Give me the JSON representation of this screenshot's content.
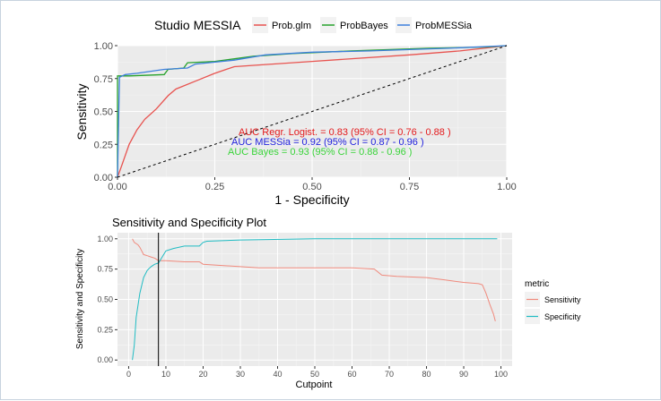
{
  "chart_data": [
    {
      "type": "line",
      "title": "",
      "xlabel": "1 - Specificity",
      "ylabel": "Sensitivity",
      "xlim": [
        0,
        1
      ],
      "ylim": [
        0,
        1
      ],
      "grid": true,
      "legend": {
        "title": "Studio MESSIA",
        "placement": "top",
        "entries": [
          "Prob.glm",
          "ProbBayes",
          "ProbMESSia"
        ]
      },
      "x_ticks": [
        "0.00",
        "0.25",
        "0.50",
        "0.75",
        "1.00"
      ],
      "y_ticks": [
        "0.00",
        "0.25",
        "0.50",
        "0.75",
        "1.00"
      ],
      "series": [
        {
          "name": "Prob.glm",
          "color": "#e8534f",
          "points": [
            [
              0,
              0
            ],
            [
              0.01,
              0.08
            ],
            [
              0.03,
              0.25
            ],
            [
              0.05,
              0.36
            ],
            [
              0.07,
              0.44
            ],
            [
              0.1,
              0.52
            ],
            [
              0.13,
              0.62
            ],
            [
              0.15,
              0.67
            ],
            [
              0.2,
              0.73
            ],
            [
              0.25,
              0.79
            ],
            [
              0.3,
              0.84
            ],
            [
              0.35,
              0.85
            ],
            [
              0.5,
              0.88
            ],
            [
              0.75,
              0.93
            ],
            [
              0.88,
              0.96
            ],
            [
              1,
              1
            ]
          ]
        },
        {
          "name": "ProbBayes",
          "color": "#27a22c",
          "points": [
            [
              0,
              0
            ],
            [
              0,
              0.77
            ],
            [
              0.03,
              0.77
            ],
            [
              0.12,
              0.78
            ],
            [
              0.13,
              0.82
            ],
            [
              0.17,
              0.83
            ],
            [
              0.18,
              0.87
            ],
            [
              0.25,
              0.88
            ],
            [
              0.35,
              0.92
            ],
            [
              0.45,
              0.94
            ],
            [
              0.6,
              0.96
            ],
            [
              0.8,
              0.98
            ],
            [
              0.95,
              0.99
            ],
            [
              1,
              1
            ]
          ]
        },
        {
          "name": "ProbMESSia",
          "color": "#3d7fdc",
          "points": [
            [
              0,
              0
            ],
            [
              0.005,
              0.76
            ],
            [
              0.02,
              0.78
            ],
            [
              0.05,
              0.79
            ],
            [
              0.12,
              0.82
            ],
            [
              0.18,
              0.83
            ],
            [
              0.2,
              0.86
            ],
            [
              0.3,
              0.89
            ],
            [
              0.38,
              0.93
            ],
            [
              0.5,
              0.95
            ],
            [
              0.65,
              0.96
            ],
            [
              0.85,
              0.98
            ],
            [
              1,
              1
            ]
          ]
        },
        {
          "name": "",
          "color": "#000000",
          "dashed": true,
          "points": [
            [
              0,
              0
            ],
            [
              1,
              1
            ]
          ]
        }
      ],
      "annotations": [
        {
          "text": "AUC Regr. Logist. =  0.83  (95% CI =  0.76 - 0.88 )",
          "color": "#e41a1c"
        },
        {
          "text": "AUC MESSia              =  0.92 (95% CI =  0.87 - 0.96 )",
          "color": "#1f1fdd"
        },
        {
          "text": "AUC Bayes                  =  0.93 (95% CI =  0.88 - 0.96 )",
          "color": "#3ad43a"
        }
      ]
    },
    {
      "type": "line",
      "title": "Sensitivity and Specificity Plot",
      "xlabel": "Cutpoint",
      "ylabel": "Sensitivity and Specificity",
      "xlim": [
        -3,
        103
      ],
      "ylim": [
        -0.05,
        1.05
      ],
      "grid": true,
      "legend": {
        "title": "metric",
        "placement": "right",
        "entries": [
          "Sensitivity",
          "Specificity"
        ]
      },
      "x_ticks": [
        "0",
        "10",
        "20",
        "30",
        "40",
        "50",
        "60",
        "70",
        "80",
        "90",
        "100"
      ],
      "y_ticks": [
        "0.00",
        "0.25",
        "0.50",
        "0.75",
        "1.00"
      ],
      "vline": 8,
      "series": [
        {
          "name": "Sensitivity",
          "color": "#f08a7d",
          "points": [
            [
              1,
              1.0
            ],
            [
              1.5,
              0.97
            ],
            [
              2.5,
              0.95
            ],
            [
              3,
              0.93
            ],
            [
              3.5,
              0.9
            ],
            [
              4,
              0.87
            ],
            [
              5,
              0.86
            ],
            [
              6,
              0.85
            ],
            [
              7,
              0.84
            ],
            [
              8,
              0.82
            ],
            [
              10,
              0.82
            ],
            [
              15,
              0.81
            ],
            [
              19,
              0.81
            ],
            [
              20,
              0.79
            ],
            [
              25,
              0.78
            ],
            [
              30,
              0.77
            ],
            [
              35,
              0.76
            ],
            [
              40,
              0.76
            ],
            [
              60,
              0.76
            ],
            [
              66,
              0.75
            ],
            [
              68,
              0.7
            ],
            [
              72,
              0.69
            ],
            [
              80,
              0.68
            ],
            [
              85,
              0.66
            ],
            [
              90,
              0.64
            ],
            [
              94,
              0.63
            ],
            [
              95,
              0.62
            ],
            [
              96,
              0.55
            ],
            [
              97,
              0.46
            ],
            [
              98,
              0.38
            ],
            [
              98.5,
              0.32
            ]
          ]
        },
        {
          "name": "Specificity",
          "color": "#21bcc3",
          "points": [
            [
              1,
              0.0
            ],
            [
              1.5,
              0.12
            ],
            [
              2,
              0.35
            ],
            [
              3,
              0.55
            ],
            [
              4,
              0.68
            ],
            [
              5,
              0.74
            ],
            [
              6,
              0.77
            ],
            [
              7,
              0.79
            ],
            [
              8,
              0.8
            ],
            [
              10,
              0.9
            ],
            [
              12,
              0.92
            ],
            [
              15,
              0.94
            ],
            [
              19,
              0.94
            ],
            [
              20,
              0.97
            ],
            [
              21,
              0.98
            ],
            [
              30,
              0.99
            ],
            [
              50,
              1.0
            ],
            [
              99,
              1.0
            ]
          ]
        }
      ]
    }
  ]
}
